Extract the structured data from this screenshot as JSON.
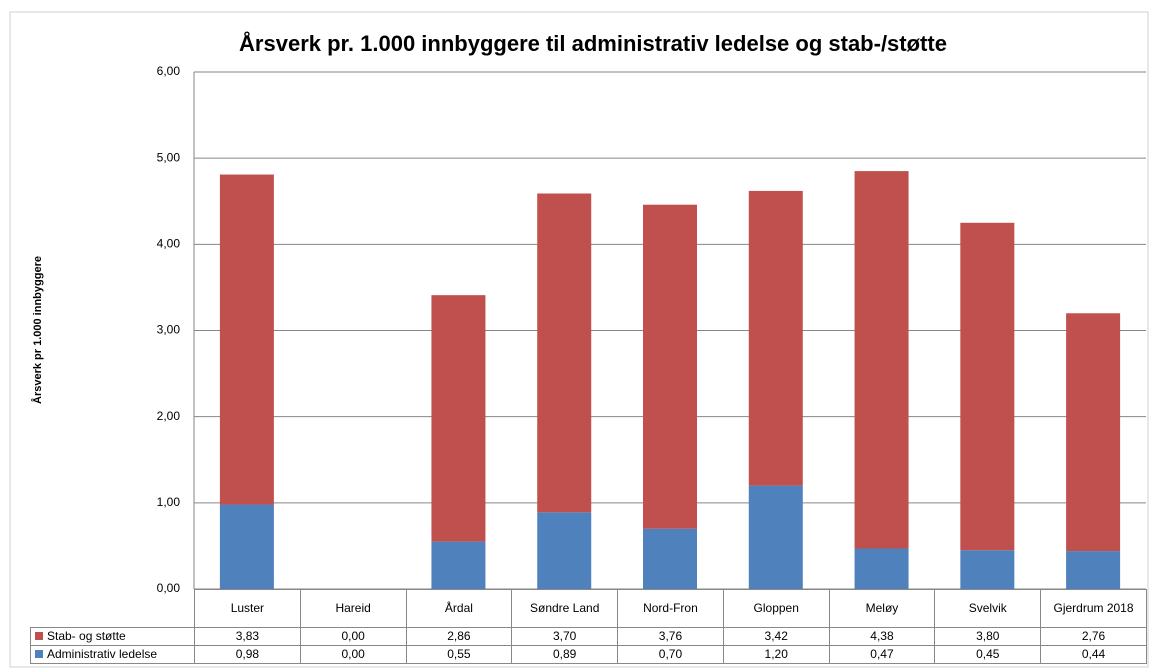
{
  "chart_data": {
    "type": "stacked_bar",
    "title": "Årsverk pr. 1.000 innbyggere til administrativ ledelse og stab-/støtte",
    "y_label": "Årsverk pr 1.000 innbyggere",
    "categories": [
      "Luster",
      "Hareid",
      "Årdal",
      "Søndre Land",
      "Nord-Fron",
      "Gloppen",
      "Meløy",
      "Svelvik",
      "Gjerdrum 2018"
    ],
    "series": [
      {
        "name": "Stab- og støtte",
        "color": "#c0504d",
        "values": [
          3.83,
          0,
          2.86,
          3.7,
          3.76,
          3.42,
          4.38,
          3.8,
          2.76
        ],
        "value_labels": [
          "3,83",
          "0,00",
          "2,86",
          "3,70",
          "3,76",
          "3,42",
          "4,38",
          "3,80",
          "2,76"
        ]
      },
      {
        "name": "Administrativ ledelse",
        "color": "#4f81bd",
        "values": [
          0.98,
          0,
          0.55,
          0.89,
          0.7,
          1.2,
          0.47,
          0.45,
          0.44
        ],
        "value_labels": [
          "0,98",
          "0,00",
          "0,55",
          "0,89",
          "0,70",
          "1,20",
          "0,47",
          "0,45",
          "0,44"
        ]
      }
    ],
    "ylim": [
      0,
      6
    ],
    "yticks": [
      {
        "value": 0,
        "label": "0,00"
      },
      {
        "value": 1,
        "label": "1,00"
      },
      {
        "value": 2,
        "label": "2,00"
      },
      {
        "value": 3,
        "label": "3,00"
      },
      {
        "value": 4,
        "label": "4,00"
      },
      {
        "value": 5,
        "label": "5,00"
      },
      {
        "value": 6,
        "label": "6,00"
      }
    ],
    "grid": true
  }
}
